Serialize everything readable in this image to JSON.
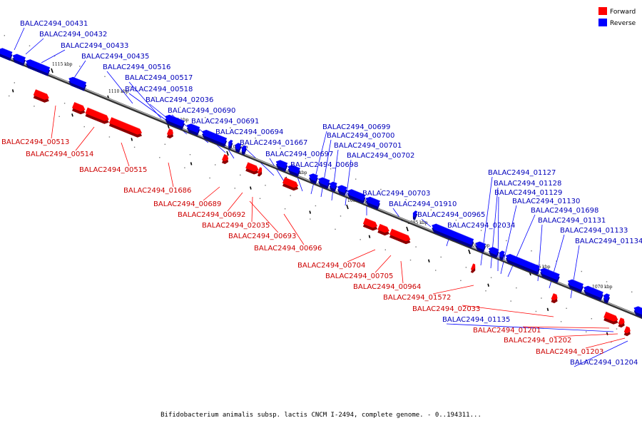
{
  "legend": [
    {
      "label": "Forward",
      "color": "#ff0000"
    },
    {
      "label": "Reverse",
      "color": "#0000ff"
    }
  ],
  "caption": "Bifidobacterium animalis subsp. lactis CNCM I-2494, complete genome. - 0..194311...",
  "tick_labels": [
    "1115 kbp",
    "1110 kbp",
    "1105 kbp",
    "1100 kbp",
    "1095 kbp",
    "1090 kbp",
    "1085 kbp",
    "1080 kbp",
    "1075 kbp",
    "1070 kbp"
  ],
  "reverse_genes": [
    "BALAC2494_00431",
    "BALAC2494_00432",
    "BALAC2494_00433",
    "BALAC2494_00435",
    "BALAC2494_00516",
    "BALAC2494_00517",
    "BALAC2494_00518",
    "BALAC2494_02036",
    "BALAC2494_00690",
    "BALAC2494_00691",
    "BALAC2494_00694",
    "BALAC2494_01667",
    "BALAC2494_00697",
    "BALAC2494_00698",
    "BALAC2494_00699",
    "BALAC2494_00700",
    "BALAC2494_00701",
    "BALAC2494_00702",
    "BALAC2494_00703",
    "BALAC2494_01910",
    "BALAC2494_00965",
    "BALAC2494_02034",
    "BALAC2494_01127",
    "BALAC2494_01128",
    "BALAC2494_01129",
    "BALAC2494_01130",
    "BALAC2494_01698",
    "BALAC2494_01131",
    "BALAC2494_01133",
    "BALAC2494_01134",
    "BALAC2494_01135",
    "BALAC2494_01204"
  ],
  "forward_genes": [
    "BALAC2494_00513",
    "BALAC2494_00514",
    "BALAC2494_00515",
    "BALAC2494_01686",
    "BALAC2494_00689",
    "BALAC2494_00692",
    "BALAC2494_02035",
    "BALAC2494_00693",
    "BALAC2494_00696",
    "BALAC2494_00704",
    "BALAC2494_00705",
    "BALAC2494_00964",
    "BALAC2494_01572",
    "BALAC2494_02033",
    "BALAC2494_01201",
    "BALAC2494_01202",
    "BALAC2494_01203"
  ],
  "colors": {
    "forward": "#ff0000",
    "reverse": "#0000ff",
    "forward_label": "#cc0000",
    "reverse_label": "#0000bb",
    "backbone": "#555555"
  }
}
